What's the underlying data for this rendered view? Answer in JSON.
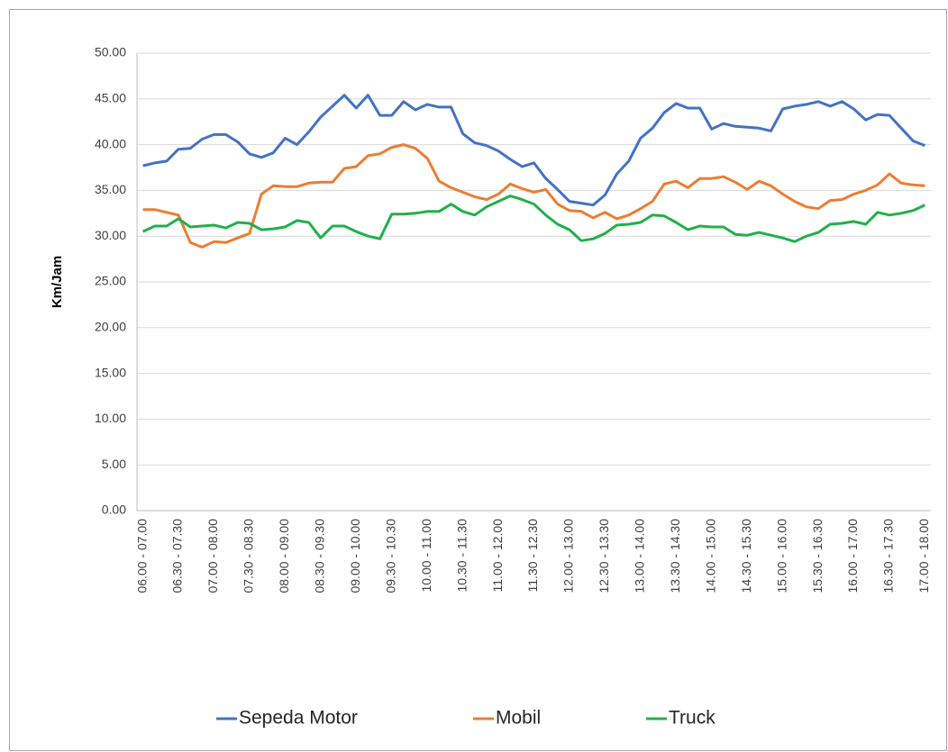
{
  "chart_data": {
    "type": "line",
    "ylabel": "Km/Jam",
    "categories": [
      "06.00 - 07.00",
      null,
      null,
      "06.30 - 07.30",
      null,
      null,
      "07.00 - 08.00",
      null,
      null,
      "07.30 - 08.30",
      null,
      null,
      "08.00 - 09.00",
      null,
      null,
      "08.30 - 09.30",
      null,
      null,
      "09.00 - 10.00",
      null,
      null,
      "09.30 - 10.30",
      null,
      null,
      "10.00 - 11.00",
      null,
      null,
      "10.30 - 11.30",
      null,
      null,
      "11.00 - 12.00",
      null,
      null,
      "11.30 - 12.30",
      null,
      null,
      "12.00 - 13.00",
      null,
      null,
      "12.30 - 13.30",
      null,
      null,
      "13.00 - 14.00",
      null,
      null,
      "13.30 - 14.30",
      null,
      null,
      "14.00 - 15.00",
      null,
      null,
      "14.30 - 15.30",
      null,
      null,
      "15.00 - 16.00",
      null,
      null,
      "15.30 - 16.30",
      null,
      null,
      "16.00 - 17.00",
      null,
      null,
      "16.30 - 17.30",
      null,
      null,
      "17.00 - 18.00"
    ],
    "series": [
      {
        "name": "Sepeda Motor",
        "color": "#4472c4",
        "values": [
          37.7,
          38.0,
          38.2,
          39.5,
          39.6,
          40.6,
          41.1,
          41.1,
          40.3,
          39.0,
          38.6,
          39.1,
          40.7,
          40.0,
          41.4,
          43.0,
          44.2,
          45.4,
          44.0,
          45.4,
          43.2,
          43.2,
          44.7,
          43.8,
          44.4,
          44.1,
          44.1,
          41.2,
          40.2,
          39.9,
          39.3,
          38.4,
          37.6,
          38.0,
          36.3,
          35.1,
          33.8,
          33.6,
          33.4,
          34.5,
          36.8,
          38.2,
          40.7,
          41.8,
          43.5,
          44.5,
          44.0,
          44.0,
          41.7,
          42.3,
          42.0,
          41.9,
          41.8,
          41.5,
          43.9,
          44.2,
          44.4,
          44.7,
          44.2,
          44.7,
          43.9,
          42.7,
          43.3,
          43.2,
          41.8,
          40.4,
          39.9
        ]
      },
      {
        "name": "Mobil",
        "color": "#ed7d31",
        "values": [
          32.9,
          32.9,
          32.6,
          32.3,
          29.3,
          28.8,
          29.4,
          29.3,
          29.8,
          30.3,
          34.6,
          35.5,
          35.4,
          35.4,
          35.8,
          35.9,
          35.9,
          37.4,
          37.6,
          38.8,
          39.0,
          39.7,
          40.0,
          39.6,
          38.5,
          36.0,
          35.3,
          34.8,
          34.3,
          34.0,
          34.6,
          35.7,
          35.2,
          34.8,
          35.1,
          33.5,
          32.8,
          32.7,
          32.0,
          32.6,
          31.9,
          32.3,
          33.0,
          33.8,
          35.7,
          36.0,
          35.3,
          36.3,
          36.3,
          36.5,
          35.9,
          35.1,
          36.0,
          35.5,
          34.6,
          33.8,
          33.2,
          33.0,
          33.9,
          34.0,
          34.6,
          35.0,
          35.6,
          36.8,
          35.8,
          35.6,
          35.5
        ]
      },
      {
        "name": "Truck",
        "color": "#21b04b",
        "values": [
          30.5,
          31.1,
          31.1,
          31.9,
          31.0,
          31.1,
          31.2,
          30.9,
          31.5,
          31.4,
          30.7,
          30.8,
          31.0,
          31.7,
          31.5,
          29.8,
          31.1,
          31.1,
          30.5,
          30.0,
          29.7,
          32.4,
          32.4,
          32.5,
          32.7,
          32.7,
          33.5,
          32.7,
          32.3,
          33.2,
          33.8,
          34.4,
          34.0,
          33.5,
          32.3,
          31.3,
          30.7,
          29.5,
          29.7,
          30.3,
          31.2,
          31.3,
          31.5,
          32.3,
          32.2,
          31.5,
          30.7,
          31.1,
          31.0,
          31.0,
          30.2,
          30.1,
          30.4,
          30.1,
          29.8,
          29.4,
          30.0,
          30.4,
          31.3,
          31.4,
          31.6,
          31.3,
          32.6,
          32.3,
          32.5,
          32.8,
          33.4
        ]
      }
    ],
    "ylim": [
      0,
      50
    ],
    "yticks": [
      {
        "value": 0,
        "label": "0.00"
      },
      {
        "value": 5,
        "label": "5.00"
      },
      {
        "value": 10,
        "label": "10.00"
      },
      {
        "value": 15,
        "label": "15.00"
      },
      {
        "value": 20,
        "label": "20.00"
      },
      {
        "value": 25,
        "label": "25.00"
      },
      {
        "value": 30,
        "label": "30.00"
      },
      {
        "value": 35,
        "label": "35.00"
      },
      {
        "value": 40,
        "label": "40.00"
      },
      {
        "value": 45,
        "label": "45.00"
      },
      {
        "value": 50,
        "label": "50.00"
      }
    ],
    "grid": true,
    "legend": "bottom"
  }
}
